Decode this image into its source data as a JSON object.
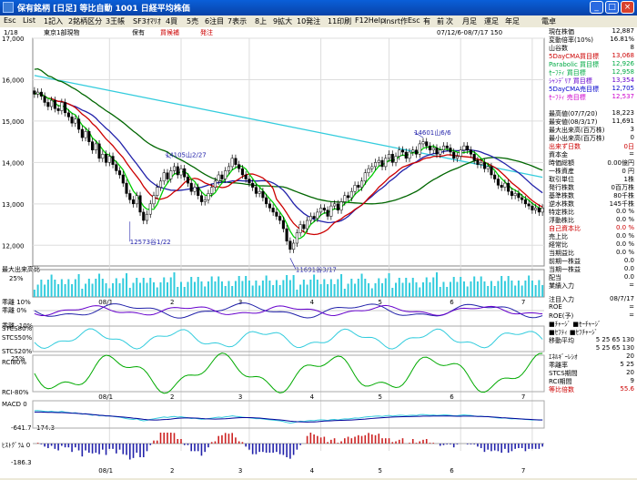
{
  "window": {
    "title": "保有銘柄 [日足] 等比自動  1001  日経平均株価"
  },
  "menu": [
    "Esc",
    "List",
    "1記入",
    "2銘柄区分",
    "3王帳",
    "SF3ｵﾏﾘｵ",
    "4買",
    "5売",
    "6注目",
    "7表示",
    "8上",
    "9拡大",
    "10発注",
    "11印刷",
    "F12Help",
    "Insrt作",
    "Esc",
    "有",
    "前",
    "次",
    "月足",
    "運足",
    "年足",
    "電卓"
  ],
  "header": {
    "page": "1/18",
    "market": "東京1部現物",
    "status1": "保有",
    "status2": "買候補",
    "status3": "発注",
    "range": "07/12/6-08/7/17 150"
  },
  "chart_data": {
    "type": "candlestick",
    "y_ticks": [
      17000,
      16000,
      15000,
      14000,
      13000,
      12000
    ],
    "x_labels": [
      "08/1",
      "2",
      "3",
      "4",
      "5",
      "6",
      "7"
    ],
    "annotations": [
      {
        "label": "14105山2/27"
      },
      {
        "label": "12573谷1/22"
      },
      {
        "label": "11691谷3/17"
      },
      {
        "label": "14601山6/6"
      }
    ],
    "closes": [
      15650,
      15700,
      15600,
      15450,
      15350,
      15500,
      15300,
      15250,
      15450,
      15200,
      15100,
      14950,
      15050,
      14800,
      14600,
      14750,
      14500,
      14300,
      14450,
      14100,
      14200,
      14000,
      14150,
      13950,
      13800,
      13700,
      13500,
      13250,
      13100,
      13000,
      13200,
      12800,
      12600,
      12750,
      13000,
      13200,
      13400,
      13550,
      13750,
      13600,
      13800,
      13900,
      13700,
      13850,
      13650,
      13500,
      13300,
      13400,
      13200,
      13050,
      13100,
      13250,
      13400,
      13550,
      13700,
      13600,
      13800,
      13900,
      14100,
      13950,
      13850,
      13700,
      13600,
      13500,
      13400,
      13250,
      13300,
      13150,
      13000,
      12900,
      12800,
      12700,
      12600,
      12400,
      12100,
      11900,
      12050,
      12300,
      12500,
      12400,
      12600,
      12700,
      12650,
      12800,
      12900,
      12850,
      12700,
      12950,
      13000,
      12850,
      13050,
      13200,
      13150,
      13300,
      13450,
      13400,
      13550,
      13750,
      13850,
      13900,
      14000,
      14050,
      13900,
      14100,
      14200,
      14000,
      14150,
      14300,
      14250,
      14100,
      14250,
      14300,
      14200,
      14450,
      14500,
      14400,
      14300,
      14350,
      14200,
      14300,
      14400,
      14350,
      14250,
      14100,
      14150,
      14300,
      14400,
      14300,
      14200,
      14050,
      13950,
      14000,
      13850,
      13900,
      13700,
      13600,
      13450,
      13400,
      13500,
      13300,
      13200,
      13250,
      13150,
      13100,
      13000,
      12950,
      12850,
      12900,
      12800,
      12900
    ]
  },
  "sub_labels": {
    "volume": "最大出来高比",
    "volume_pct": "25%",
    "kairi_top": "乖離 10%",
    "kairi_mid": "乖離 0%",
    "kairi_bot": "乖離 -10%",
    "stcs_top": "STCS80%",
    "stcs_mid": "STCS50%",
    "stcs_bot": "STCS20%",
    "stcs_25": "25%",
    "rci_top": "RCI80%",
    "rci_bot": "RCI-80%",
    "macd": "MACD 0",
    "macd_hi": "174.3",
    "macd_lo": "-641.7",
    "hist": "ﾋｽﾄｸﾞﾗﾑ 0",
    "hist_lo": "-186.3"
  },
  "side_panel": [
    {
      "k": "現在株価",
      "v": "12,887"
    },
    {
      "k": "変動倍率(10%)",
      "v": "16.81%"
    },
    {
      "k": "山谷数",
      "v": "8"
    },
    {
      "k": "5DayCMA買目標",
      "v": "13,068",
      "c": "#cc0000"
    },
    {
      "k": "Parabolic 買目標",
      "v": "12,926",
      "c": "#00aa44"
    },
    {
      "k": "ｾｰﾌﾃｨ 買目標",
      "v": "12,958",
      "c": "#00aa44"
    },
    {
      "k": "ｼｬﾝﾃﾞﾘｱ 買目標",
      "v": "13,354",
      "c": "#6600cc"
    },
    {
      "k": "5DayCMA売目標",
      "v": "12,705",
      "c": "#0000cc"
    },
    {
      "k": "ｾｰﾌﾃｨ 売目標",
      "v": "12,537",
      "c": "#cc00cc"
    },
    {
      "k": "",
      "v": ""
    },
    {
      "k": "最高値(07/7/20)",
      "v": "18,223"
    },
    {
      "k": "最安値(08/3/17)",
      "v": "11,691"
    },
    {
      "k": "最大出来高(百万株)",
      "v": "3"
    },
    {
      "k": "最小出来高(百万株)",
      "v": "0"
    },
    {
      "k": "出来ず日数",
      "v": "0日",
      "c": "#cc0000"
    },
    {
      "k": "資本金",
      "v": "="
    },
    {
      "k": "時価総額",
      "v": "0.00億円"
    },
    {
      "k": "一株資産",
      "v": "0 円"
    },
    {
      "k": "取引単位",
      "v": "1株"
    },
    {
      "k": "発行株数",
      "v": "0百万株"
    },
    {
      "k": "基準株数",
      "v": "80千株"
    },
    {
      "k": "逆水株数",
      "v": "145千株"
    },
    {
      "k": "特定株比",
      "v": "0.0 %"
    },
    {
      "k": "浮動株比",
      "v": "0.0 %"
    },
    {
      "k": "自己資本比",
      "v": "0.0 %",
      "c": "#cc0000"
    },
    {
      "k": "売上比",
      "v": "0.0 %"
    },
    {
      "k": "経常比",
      "v": "0.0 %"
    },
    {
      "k": "当期益比",
      "v": "0.0 %"
    },
    {
      "k": "前期一株益",
      "v": "0.0"
    },
    {
      "k": "当期一株益",
      "v": "0.0"
    },
    {
      "k": "配当",
      "v": "0.0"
    },
    {
      "k": "業績入力",
      "v": "="
    }
  ],
  "side_panel2": [
    {
      "k": "注目入力",
      "v": "08/7/17"
    },
    {
      "k": "ROE",
      "v": "="
    },
    {
      "k": "ROE(予)",
      "v": "="
    },
    {
      "k": "■ﾁｬｰｼﾞ  ■ｾｰﾁｬｰｼﾞ",
      "v": ""
    },
    {
      "k": "■ｾﾌﾃｨ  ■ｾﾌﾁｬｰｼﾞ",
      "v": ""
    },
    {
      "k": "移動平均",
      "v": "5 25 65 130"
    },
    {
      "k": "",
      "v": "5 25 65 130"
    },
    {
      "k": "ｴﾈﾙｷﾞｰﾚｼｵ",
      "v": "20"
    },
    {
      "k": "乖離率",
      "v": "5 25"
    },
    {
      "k": "STCS期間",
      "v": "20"
    },
    {
      "k": "RCI期間",
      "v": "9"
    },
    {
      "k": "等比倍数",
      "v": "55.6",
      "c": "#cc0000"
    }
  ],
  "colors": {
    "bg": "#ffffff",
    "ma5": "#00cc00",
    "ma25": "#cc0000",
    "ma65": "#006600",
    "ma130": "#33ccdd",
    "ma200": "#2222aa",
    "pink": "#ff33cc"
  }
}
